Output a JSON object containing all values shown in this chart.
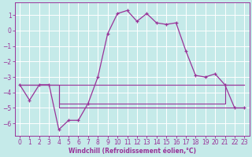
{
  "xlabel": "Windchill (Refroidissement éolien,°C)",
  "bg_color": "#c5eae9",
  "line_color": "#993399",
  "grid_color": "#ffffff",
  "xlim": [
    -0.5,
    23.5
  ],
  "ylim": [
    -6.8,
    1.8
  ],
  "yticks": [
    1,
    0,
    -1,
    -2,
    -3,
    -4,
    -5,
    -6
  ],
  "xticks": [
    0,
    1,
    2,
    3,
    4,
    5,
    6,
    7,
    8,
    9,
    10,
    11,
    12,
    13,
    14,
    15,
    16,
    17,
    18,
    19,
    20,
    21,
    22,
    23
  ],
  "series_main": {
    "x": [
      0,
      1,
      2,
      3,
      4,
      5,
      6,
      7,
      8,
      9,
      10,
      11,
      12,
      13,
      14,
      15,
      16,
      17,
      18,
      19,
      20,
      21,
      22,
      23
    ],
    "y": [
      -3.5,
      -4.5,
      -3.5,
      -3.5,
      -6.4,
      -5.8,
      -5.8,
      -4.7,
      -3.0,
      -0.2,
      1.1,
      1.3,
      0.6,
      1.1,
      0.5,
      0.4,
      0.5,
      -1.3,
      -2.9,
      -3.0,
      -2.8,
      -3.5,
      -5.0,
      -5.0
    ]
  },
  "series_flat": [
    {
      "x": [
        0,
        23
      ],
      "y": [
        -3.5,
        -3.5
      ]
    },
    {
      "x": [
        0,
        4,
        4,
        23
      ],
      "y": [
        -3.5,
        -3.5,
        -5.0,
        -5.0
      ]
    },
    {
      "x": [
        0,
        4,
        4,
        21,
        21,
        23
      ],
      "y": [
        -3.5,
        -3.5,
        -4.7,
        -4.7,
        -3.5,
        -3.5
      ]
    }
  ]
}
